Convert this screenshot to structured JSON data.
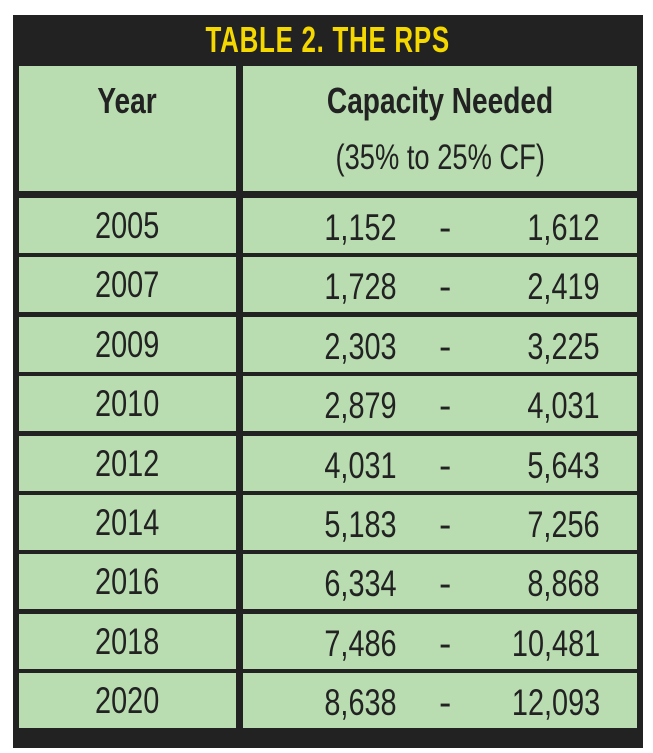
{
  "title": "TABLE 2. THE RPS",
  "headers": {
    "year": "Year",
    "capacity": "Capacity Needed",
    "capacity_sub": "(35% to 25% CF)"
  },
  "separator": "-",
  "rows": [
    {
      "year": "2005",
      "low": "1,152",
      "high": "1,612"
    },
    {
      "year": "2007",
      "low": "1,728",
      "high": "2,419"
    },
    {
      "year": "2009",
      "low": "2,303",
      "high": "3,225"
    },
    {
      "year": "2010",
      "low": "2,879",
      "high": "4,031"
    },
    {
      "year": "2012",
      "low": "4,031",
      "high": "5,643"
    },
    {
      "year": "2014",
      "low": "5,183",
      "high": "7,256"
    },
    {
      "year": "2016",
      "low": "6,334",
      "high": "8,868"
    },
    {
      "year": "2018",
      "low": "7,486",
      "high": "10,481"
    },
    {
      "year": "2020",
      "low": "8,638",
      "high": "12,093"
    }
  ],
  "colors": {
    "cell_bg": "#b9dcb1",
    "frame": "#222222",
    "title": "#f5d800"
  }
}
